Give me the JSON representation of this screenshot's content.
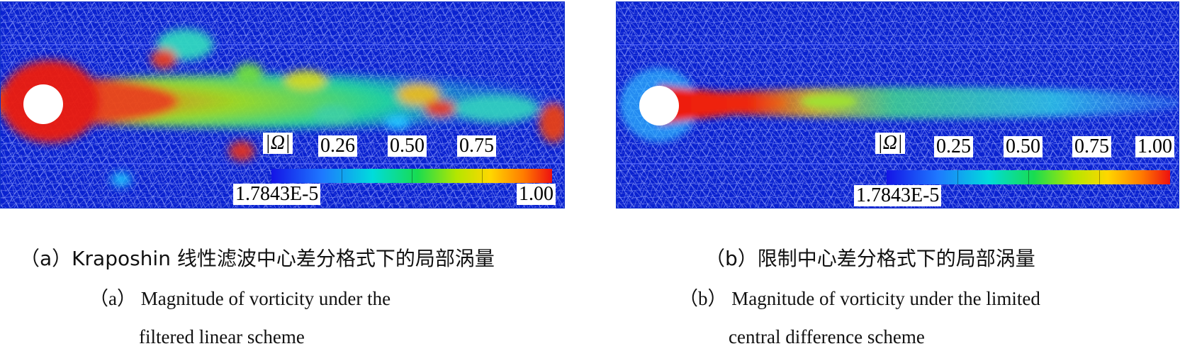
{
  "panels": [
    {
      "id": "a",
      "colorbar": {
        "symbol": "|Ω|",
        "tick_labels": [
          "0.26",
          "0.50",
          "0.75"
        ],
        "min_label": "1.7843E-5",
        "max_label": "1.00"
      },
      "caption_cn": "（a）Kraposhin 线性滤波中心差分格式下的局部涡量",
      "caption_en_1": "（a） Magnitude of vorticity under the",
      "caption_en_2": "filtered linear scheme"
    },
    {
      "id": "b",
      "colorbar": {
        "symbol": "|Ω|",
        "tick_labels": [
          "0.25",
          "0.50",
          "0.75",
          "1.00"
        ],
        "min_label": "1.7843E-5"
      },
      "caption_cn": "（b）限制中心差分格式下的局部涡量",
      "caption_en_1": "（b） Magnitude of vorticity under the limited",
      "caption_en_2": "central difference scheme"
    }
  ],
  "colors": {
    "mesh": "#1a2fd8",
    "background": "#0a1fcc",
    "high": "#e81010"
  }
}
